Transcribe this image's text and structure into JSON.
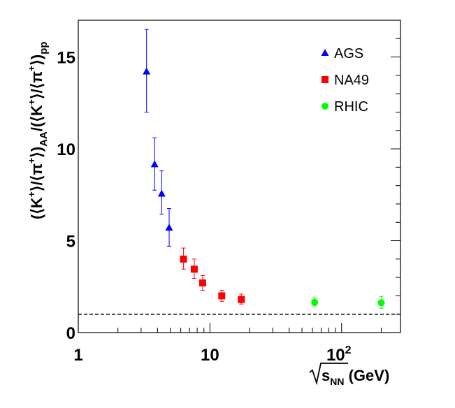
{
  "chart_data": {
    "type": "scatter",
    "title": "",
    "xlabel": "√s_NN (GeV)",
    "ylabel": "(⟨K⁺⟩/⟨π⁺⟩)_AA/(⟨K⁺⟩/⟨π⁺⟩)_pp",
    "xscale": "log",
    "xlim": [
      1,
      280
    ],
    "ylim": [
      0,
      17
    ],
    "x_tick_labels": [
      "1",
      "10",
      "10²"
    ],
    "y_tick_labels": [
      "0",
      "5",
      "10",
      "15"
    ],
    "reference_line": {
      "y": 1,
      "style": "dashed"
    },
    "legend_position": "top-right",
    "series": [
      {
        "name": "AGS",
        "marker": "triangle",
        "color": "#0000ff",
        "points": [
          {
            "x": 3.3,
            "y": 14.2,
            "err_lo": 2.2,
            "err_hi": 2.3
          },
          {
            "x": 3.8,
            "y": 9.15,
            "err_lo": 1.4,
            "err_hi": 1.45
          },
          {
            "x": 4.3,
            "y": 7.55,
            "err_lo": 1.1,
            "err_hi": 1.25
          },
          {
            "x": 4.9,
            "y": 5.7,
            "err_lo": 1.0,
            "err_hi": 1.05
          }
        ]
      },
      {
        "name": "NA49",
        "marker": "square",
        "color": "#ff0000",
        "points": [
          {
            "x": 6.3,
            "y": 4.0,
            "err_lo": 0.55,
            "err_hi": 0.6
          },
          {
            "x": 7.6,
            "y": 3.45,
            "err_lo": 0.5,
            "err_hi": 0.55
          },
          {
            "x": 8.8,
            "y": 2.7,
            "err_lo": 0.4,
            "err_hi": 0.4
          },
          {
            "x": 12.3,
            "y": 2.0,
            "err_lo": 0.3,
            "err_hi": 0.3
          },
          {
            "x": 17.3,
            "y": 1.8,
            "err_lo": 0.25,
            "err_hi": 0.3
          }
        ]
      },
      {
        "name": "RHIC",
        "marker": "circle",
        "color": "#00ff00",
        "points": [
          {
            "x": 62.4,
            "y": 1.65,
            "err_lo": 0.2,
            "err_hi": 0.25
          },
          {
            "x": 200,
            "y": 1.62,
            "err_lo": 0.3,
            "err_hi": 0.35
          }
        ]
      }
    ]
  }
}
